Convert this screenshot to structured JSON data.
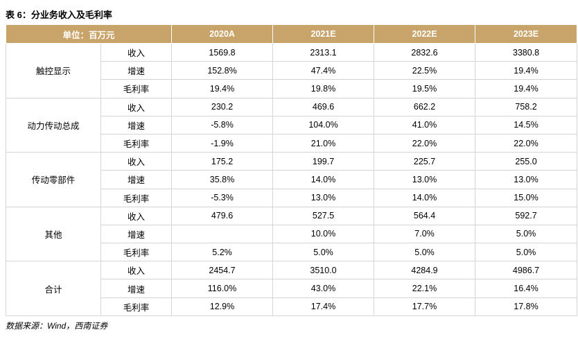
{
  "title": "表 6：分业务收入及毛利率",
  "table": {
    "header": [
      "单位：百万元",
      "2020A",
      "2021E",
      "2022E",
      "2023E"
    ],
    "groups": [
      {
        "name": "触控显示",
        "rows": [
          {
            "label": "收入",
            "values": [
              "1569.8",
              "2313.1",
              "2832.6",
              "3380.8"
            ]
          },
          {
            "label": "增速",
            "values": [
              "152.8%",
              "47.4%",
              "22.5%",
              "19.4%"
            ]
          },
          {
            "label": "毛利率",
            "values": [
              "19.4%",
              "19.8%",
              "19.5%",
              "19.4%"
            ]
          }
        ]
      },
      {
        "name": "动力传动总成",
        "rows": [
          {
            "label": "收入",
            "values": [
              "230.2",
              "469.6",
              "662.2",
              "758.2"
            ]
          },
          {
            "label": "增速",
            "values": [
              "-5.8%",
              "104.0%",
              "41.0%",
              "14.5%"
            ]
          },
          {
            "label": "毛利率",
            "values": [
              "-1.9%",
              "21.0%",
              "22.0%",
              "22.0%"
            ]
          }
        ]
      },
      {
        "name": "传动零部件",
        "rows": [
          {
            "label": "收入",
            "values": [
              "175.2",
              "199.7",
              "225.7",
              "255.0"
            ]
          },
          {
            "label": "增速",
            "values": [
              "35.8%",
              "14.0%",
              "13.0%",
              "13.0%"
            ]
          },
          {
            "label": "毛利率",
            "values": [
              "-5.3%",
              "13.0%",
              "14.0%",
              "15.0%"
            ]
          }
        ]
      },
      {
        "name": "其他",
        "rows": [
          {
            "label": "收入",
            "values": [
              "479.6",
              "527.5",
              "564.4",
              "592.7"
            ]
          },
          {
            "label": "增速",
            "values": [
              null,
              "10.0%",
              "7.0%",
              "5.0%"
            ]
          },
          {
            "label": "毛利率",
            "values": [
              "5.2%",
              "5.0%",
              "5.0%",
              "5.0%"
            ]
          }
        ]
      },
      {
        "name": "合计",
        "rows": [
          {
            "label": "收入",
            "values": [
              "2454.7",
              "3510.0",
              "4284.9",
              "4986.7"
            ]
          },
          {
            "label": "增速",
            "values": [
              "116.0%",
              "43.0%",
              "22.1%",
              "16.4%"
            ]
          },
          {
            "label": "毛利率",
            "values": [
              "12.9%",
              "17.4%",
              "17.7%",
              "17.8%"
            ]
          }
        ]
      }
    ]
  },
  "source": "数据来源：Wind，西南证券"
}
